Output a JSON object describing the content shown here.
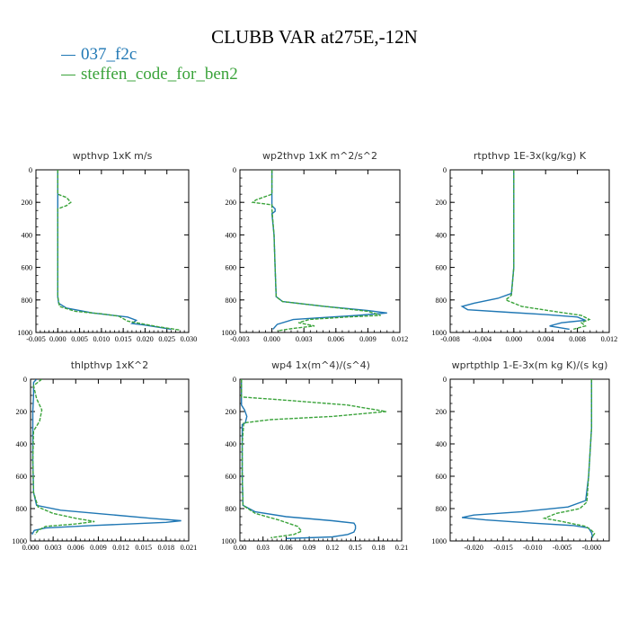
{
  "title": "CLUBB VAR at275E,-12N",
  "colors": {
    "series1": "#1f77b4",
    "series2": "#3aa33a"
  },
  "legend": [
    {
      "name": "037_f2c",
      "color": "#1f77b4"
    },
    {
      "name": "steffen_code_for_ben2",
      "color": "#3aa33a"
    }
  ],
  "chart_data": [
    {
      "type": "line",
      "title": "wpthvp  1xK m/s",
      "xlim": [
        -0.005,
        0.03
      ],
      "xticks": [
        "-0.005",
        "0.000",
        "0.005",
        "0.010",
        "0.015",
        "0.020",
        "0.025",
        "0.030"
      ],
      "ylim": [
        0,
        1000
      ],
      "yticks": [
        "0",
        "200",
        "400",
        "600",
        "800",
        "1000"
      ],
      "y_reversed": true,
      "series": [
        {
          "name": "037_f2c",
          "points": [
            [
              0,
              0
            ],
            [
              0,
              150
            ],
            [
              0,
              200
            ],
            [
              0,
              240
            ],
            [
              0,
              400
            ],
            [
              0,
              600
            ],
            [
              0,
              780
            ],
            [
              0.0002,
              820
            ],
            [
              0.002,
              850
            ],
            [
              0.008,
              880
            ],
            [
              0.016,
              905
            ],
            [
              0.018,
              925
            ],
            [
              0.017,
              945
            ],
            [
              0.02,
              955
            ],
            [
              0.026,
              980
            ]
          ]
        },
        {
          "name": "steffen_code_for_ben2",
          "points": [
            [
              0,
              0
            ],
            [
              0,
              150
            ],
            [
              0.002,
              170
            ],
            [
              0.003,
              200
            ],
            [
              0.002,
              220
            ],
            [
              0,
              240
            ],
            [
              0,
              400
            ],
            [
              0,
              600
            ],
            [
              0,
              780
            ],
            [
              0.0004,
              840
            ],
            [
              0.004,
              870
            ],
            [
              0.01,
              885
            ],
            [
              0.014,
              900
            ],
            [
              0.016,
              930
            ],
            [
              0.02,
              950
            ],
            [
              0.023,
              965
            ],
            [
              0.028,
              985
            ]
          ]
        }
      ]
    },
    {
      "type": "line",
      "title": "wp2thvp  1xK m^2/s^2",
      "xlim": [
        -0.003,
        0.012
      ],
      "xticks": [
        "-0.003",
        "0.000",
        "0.003",
        "0.006",
        "0.009",
        "0.012"
      ],
      "ylim": [
        0,
        1000
      ],
      "yticks": [
        "0",
        "200",
        "400",
        "600",
        "800",
        "1000"
      ],
      "y_reversed": true,
      "series": [
        {
          "name": "037_f2c",
          "points": [
            [
              0,
              0
            ],
            [
              0,
              150
            ],
            [
              0,
              220
            ],
            [
              0.0003,
              240
            ],
            [
              0.0003,
              255
            ],
            [
              0,
              270
            ],
            [
              0.0002,
              400
            ],
            [
              0.0003,
              600
            ],
            [
              0.0004,
              780
            ],
            [
              0.001,
              810
            ],
            [
              0.005,
              840
            ],
            [
              0.009,
              865
            ],
            [
              0.0108,
              880
            ],
            [
              0.008,
              895
            ],
            [
              0.002,
              920
            ],
            [
              0.0005,
              950
            ],
            [
              0.0001,
              980
            ]
          ]
        },
        {
          "name": "steffen_code_for_ben2",
          "points": [
            [
              0,
              0
            ],
            [
              0,
              150
            ],
            [
              -0.0015,
              185
            ],
            [
              -0.0018,
              200
            ],
            [
              0,
              215
            ],
            [
              0,
              240
            ],
            [
              0.0002,
              400
            ],
            [
              0.0003,
              600
            ],
            [
              0.0004,
              780
            ],
            [
              0.001,
              810
            ],
            [
              0.005,
              840
            ],
            [
              0.009,
              870
            ],
            [
              0.0102,
              895
            ],
            [
              0.007,
              905
            ],
            [
              0.0035,
              920
            ],
            [
              0.0025,
              940
            ],
            [
              0.004,
              960
            ],
            [
              0.002,
              975
            ],
            [
              0.0005,
              990
            ]
          ]
        }
      ]
    },
    {
      "type": "line",
      "title": "rtpthvp  1E-3x(kg/kg) K",
      "xlim": [
        -0.008,
        0.012
      ],
      "xticks": [
        "-0.008",
        "-0.004",
        "0.000",
        "0.004",
        "0.008",
        "0.012"
      ],
      "ylim": [
        0,
        1000
      ],
      "yticks": [
        "0",
        "200",
        "400",
        "600",
        "800",
        "1000"
      ],
      "y_reversed": true,
      "series": [
        {
          "name": "037_f2c",
          "points": [
            [
              0,
              0
            ],
            [
              0,
              300
            ],
            [
              0,
              600
            ],
            [
              -0.0003,
              760
            ],
            [
              -0.002,
              790
            ],
            [
              -0.005,
              820
            ],
            [
              -0.0065,
              840
            ],
            [
              -0.0058,
              860
            ],
            [
              -0.001,
              875
            ],
            [
              0.004,
              890
            ],
            [
              0.008,
              905
            ],
            [
              0.009,
              925
            ],
            [
              0.006,
              940
            ],
            [
              0.0045,
              960
            ],
            [
              0.007,
              980
            ]
          ]
        },
        {
          "name": "steffen_code_for_ben2",
          "points": [
            [
              0,
              0
            ],
            [
              0,
              300
            ],
            [
              0,
              600
            ],
            [
              -0.0003,
              770
            ],
            [
              -0.001,
              800
            ],
            [
              0.001,
              840
            ],
            [
              0.005,
              870
            ],
            [
              0.0085,
              895
            ],
            [
              0.0095,
              920
            ],
            [
              0.0085,
              940
            ],
            [
              0.009,
              960
            ],
            [
              0.0075,
              980
            ]
          ]
        }
      ]
    },
    {
      "type": "line",
      "title": "thlpthvp  1xK^2",
      "xlim": [
        0,
        0.021
      ],
      "xticks": [
        "0.000",
        "0.003",
        "0.006",
        "0.009",
        "0.012",
        "0.015",
        "0.018",
        "0.021"
      ],
      "ylim": [
        0,
        1000
      ],
      "yticks": [
        "0",
        "200",
        "400",
        "600",
        "800",
        "1000"
      ],
      "y_reversed": true,
      "series": [
        {
          "name": "037_f2c",
          "points": [
            [
              0.0008,
              0
            ],
            [
              0.0004,
              20
            ],
            [
              0.0004,
              100
            ],
            [
              0.0003,
              200
            ],
            [
              0.0003,
              300
            ],
            [
              0.0003,
              500
            ],
            [
              0.0004,
              700
            ],
            [
              0.0008,
              780
            ],
            [
              0.004,
              810
            ],
            [
              0.01,
              835
            ],
            [
              0.016,
              860
            ],
            [
              0.02,
              875
            ],
            [
              0.018,
              885
            ],
            [
              0.008,
              905
            ],
            [
              0.002,
              920
            ],
            [
              0.0005,
              935
            ],
            [
              0.0002,
              960
            ]
          ]
        },
        {
          "name": "steffen_code_for_ben2",
          "points": [
            [
              0.0015,
              0
            ],
            [
              0.0004,
              40
            ],
            [
              0.0008,
              120
            ],
            [
              0.0015,
              190
            ],
            [
              0.0012,
              260
            ],
            [
              0.0004,
              320
            ],
            [
              0.0003,
              500
            ],
            [
              0.0004,
              700
            ],
            [
              0.001,
              790
            ],
            [
              0.003,
              830
            ],
            [
              0.006,
              860
            ],
            [
              0.0085,
              880
            ],
            [
              0.006,
              895
            ],
            [
              0.002,
              910
            ],
            [
              0.001,
              935
            ],
            [
              0.0006,
              960
            ]
          ]
        }
      ]
    },
    {
      "type": "line",
      "title": "wp4  1x(m^4)/(s^4)",
      "xlim": [
        0,
        0.21
      ],
      "xticks": [
        "0.00",
        "0.03",
        "0.06",
        "0.09",
        "0.12",
        "0.15",
        "0.18",
        "0.21"
      ],
      "ylim": [
        0,
        1000
      ],
      "yticks": [
        "0",
        "200",
        "400",
        "600",
        "800",
        "1000"
      ],
      "y_reversed": true,
      "series": [
        {
          "name": "037_f2c",
          "points": [
            [
              0.002,
              0
            ],
            [
              0.002,
              160
            ],
            [
              0.006,
              190
            ],
            [
              0.009,
              230
            ],
            [
              0.007,
              270
            ],
            [
              0.003,
              280
            ],
            [
              0.003,
              400
            ],
            [
              0.003,
              600
            ],
            [
              0.004,
              780
            ],
            [
              0.02,
              820
            ],
            [
              0.06,
              850
            ],
            [
              0.12,
              875
            ],
            [
              0.148,
              890
            ],
            [
              0.15,
              905
            ],
            [
              0.15,
              925
            ],
            [
              0.148,
              945
            ],
            [
              0.14,
              960
            ],
            [
              0.12,
              975
            ],
            [
              0.06,
              985
            ]
          ]
        },
        {
          "name": "steffen_code_for_ben2",
          "points": [
            [
              0.002,
              0
            ],
            [
              0.002,
              110
            ],
            [
              0.06,
              130
            ],
            [
              0.14,
              160
            ],
            [
              0.19,
              200
            ],
            [
              0.12,
              230
            ],
            [
              0.04,
              250
            ],
            [
              0.005,
              270
            ],
            [
              0.003,
              400
            ],
            [
              0.003,
              600
            ],
            [
              0.004,
              780
            ],
            [
              0.02,
              830
            ],
            [
              0.05,
              870
            ],
            [
              0.075,
              910
            ],
            [
              0.08,
              940
            ],
            [
              0.07,
              960
            ],
            [
              0.04,
              980
            ]
          ]
        }
      ]
    },
    {
      "type": "line",
      "title": "wprtpthlp  1-E-3x(m kg K)/(s kg)",
      "xlim": [
        -0.024,
        0.003
      ],
      "xticks": [
        "-0.020",
        "-0.015",
        "-0.010",
        "-0.005",
        "-0.000"
      ],
      "xtick_values": [
        -0.02,
        -0.015,
        -0.01,
        -0.005,
        0.0
      ],
      "ylim": [
        0,
        1000
      ],
      "yticks": [
        "0",
        "200",
        "400",
        "600",
        "800",
        "1000"
      ],
      "y_reversed": true,
      "series": [
        {
          "name": "037_f2c",
          "points": [
            [
              0,
              0
            ],
            [
              0,
              300
            ],
            [
              -0.0005,
              600
            ],
            [
              -0.001,
              750
            ],
            [
              -0.004,
              790
            ],
            [
              -0.012,
              820
            ],
            [
              -0.02,
              840
            ],
            [
              -0.022,
              855
            ],
            [
              -0.018,
              870
            ],
            [
              -0.01,
              890
            ],
            [
              -0.003,
              905
            ],
            [
              -0.0005,
              920
            ],
            [
              0,
              950
            ],
            [
              0.0002,
              980
            ]
          ]
        },
        {
          "name": "steffen_code_for_ben2",
          "points": [
            [
              0,
              0
            ],
            [
              0,
              300
            ],
            [
              -0.0005,
              600
            ],
            [
              -0.0008,
              760
            ],
            [
              -0.002,
              800
            ],
            [
              -0.006,
              830
            ],
            [
              -0.008,
              860
            ],
            [
              -0.005,
              880
            ],
            [
              -0.001,
              910
            ],
            [
              0,
              935
            ],
            [
              0.0005,
              955
            ],
            [
              0,
              980
            ]
          ]
        }
      ]
    }
  ]
}
